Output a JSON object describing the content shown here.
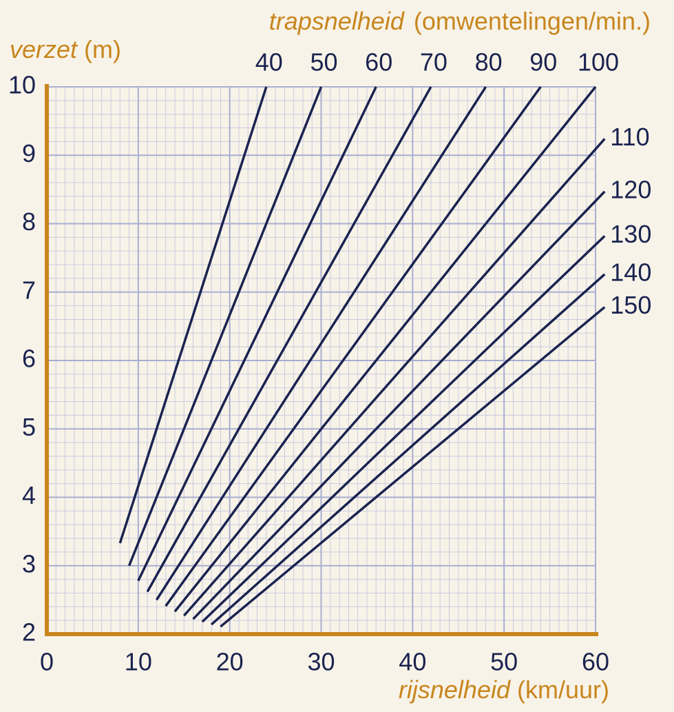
{
  "chart_data": {
    "type": "line",
    "title": "trapsnelheid",
    "title_unit": "(omwentelingen/min.)",
    "y_label": "verzet",
    "y_unit": "(m)",
    "x_label": "rijsnelheid",
    "x_unit": "(km/uur)",
    "xlim": [
      0,
      60
    ],
    "ylim": [
      2,
      10
    ],
    "xticks": [
      0,
      10,
      20,
      30,
      40,
      50,
      60
    ],
    "yticks": [
      2,
      3,
      4,
      5,
      6,
      7,
      8,
      9,
      10
    ],
    "grid": true,
    "minor_grid": {
      "x": 1,
      "y": 0.2
    },
    "series": [
      {
        "name": "40",
        "color": "#1a2350",
        "x": [
          8,
          24
        ],
        "values": [
          3.33,
          10
        ]
      },
      {
        "name": "50",
        "color": "#1a2350",
        "x": [
          9,
          30
        ],
        "values": [
          3,
          10
        ]
      },
      {
        "name": "60",
        "color": "#1a2350",
        "x": [
          10,
          36
        ],
        "values": [
          2.78,
          10
        ]
      },
      {
        "name": "70",
        "color": "#1a2350",
        "x": [
          11,
          42
        ],
        "values": [
          2.62,
          10
        ]
      },
      {
        "name": "80",
        "color": "#1a2350",
        "x": [
          12,
          48
        ],
        "values": [
          2.5,
          10
        ]
      },
      {
        "name": "90",
        "color": "#1a2350",
        "x": [
          13,
          54
        ],
        "values": [
          2.41,
          10
        ]
      },
      {
        "name": "100",
        "color": "#1a2350",
        "x": [
          14,
          60
        ],
        "values": [
          2.33,
          10
        ]
      },
      {
        "name": "110",
        "color": "#1a2350",
        "x": [
          15,
          61
        ],
        "values": [
          2.27,
          9.24
        ]
      },
      {
        "name": "120",
        "color": "#1a2350",
        "x": [
          16,
          61
        ],
        "values": [
          2.22,
          8.47
        ]
      },
      {
        "name": "130",
        "color": "#1a2350",
        "x": [
          17,
          61
        ],
        "values": [
          2.18,
          7.82
        ]
      },
      {
        "name": "140",
        "color": "#1a2350",
        "x": [
          18,
          61
        ],
        "values": [
          2.14,
          7.26
        ]
      },
      {
        "name": "150",
        "color": "#1a2350",
        "x": [
          19,
          61
        ],
        "values": [
          2.11,
          6.78
        ]
      }
    ]
  }
}
